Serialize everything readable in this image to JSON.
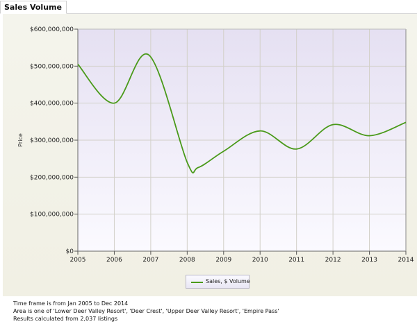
{
  "tab": {
    "label": "Sales Volume"
  },
  "colors": {
    "line": "#4a9a1a",
    "plot_top": "#e5e0f2",
    "plot_bottom": "#fbfaff",
    "grid": "#d2d0c8"
  },
  "chart_data": {
    "type": "line",
    "ylabel": "Price",
    "xlabel": "",
    "x": [
      2005,
      2006,
      2007,
      2008,
      2009,
      2010,
      2011,
      2012,
      2013,
      2014
    ],
    "xlim": [
      2005,
      2014
    ],
    "ylim": [
      0,
      600000000
    ],
    "yticks": [
      0,
      100000000,
      200000000,
      300000000,
      400000000,
      500000000,
      600000000
    ],
    "ytick_labels": [
      "$0",
      "$100,000,000",
      "$200,000,000",
      "$300,000,000",
      "$400,000,000",
      "$500,000,000",
      "$600,000,000"
    ],
    "xtick_labels": [
      "2005",
      "2006",
      "2007",
      "2008",
      "2009",
      "2010",
      "2011",
      "2012",
      "2013",
      "2014"
    ],
    "grid": true,
    "legend_position": "bottom-center",
    "series": [
      {
        "name": "Sales, $ Volume",
        "points": [
          {
            "x": 2005.0,
            "y": 505000000
          },
          {
            "x": 2006.0,
            "y": 400000000
          },
          {
            "x": 2006.95,
            "y": 530000000
          },
          {
            "x": 2008.0,
            "y": 240000000
          },
          {
            "x": 2008.3,
            "y": 226000000
          },
          {
            "x": 2009.0,
            "y": 270000000
          },
          {
            "x": 2010.0,
            "y": 325000000
          },
          {
            "x": 2011.0,
            "y": 276000000
          },
          {
            "x": 2012.0,
            "y": 342000000
          },
          {
            "x": 2013.0,
            "y": 312000000
          },
          {
            "x": 2014.0,
            "y": 348000000
          }
        ]
      }
    ]
  },
  "notes": {
    "timeframe": "Time frame is from Jan 2005 to Dec 2014",
    "area": "Area is one of 'Lower Deer Valley Resort', 'Deer Crest', 'Upper Deer Valley Resort', 'Empire Pass'",
    "results": "Results calculated from 2,037 listings"
  }
}
